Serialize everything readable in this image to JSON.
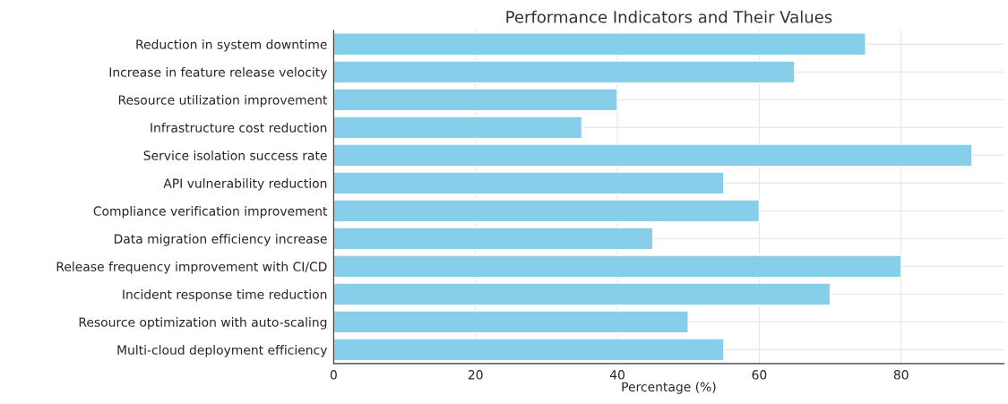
{
  "chart_data": {
    "type": "bar",
    "orientation": "horizontal",
    "title": "Performance Indicators and Their Values",
    "xlabel": "Percentage (%)",
    "categories": [
      "Reduction in system downtime",
      "Increase in feature release velocity",
      "Resource utilization improvement",
      "Infrastructure cost reduction",
      "Service isolation success rate",
      "API vulnerability reduction",
      "Compliance verification improvement",
      "Data migration efficiency increase",
      "Release frequency improvement with CI/CD",
      "Incident response time reduction",
      "Resource optimization with auto-scaling",
      "Multi-cloud deployment efficiency"
    ],
    "values": [
      75,
      65,
      40,
      35,
      90,
      55,
      60,
      45,
      80,
      70,
      50,
      55
    ],
    "color": "#87ceeb",
    "xlim": [
      0,
      94.5
    ],
    "xticks": [
      0,
      20,
      40,
      60,
      80
    ],
    "grid": true
  }
}
